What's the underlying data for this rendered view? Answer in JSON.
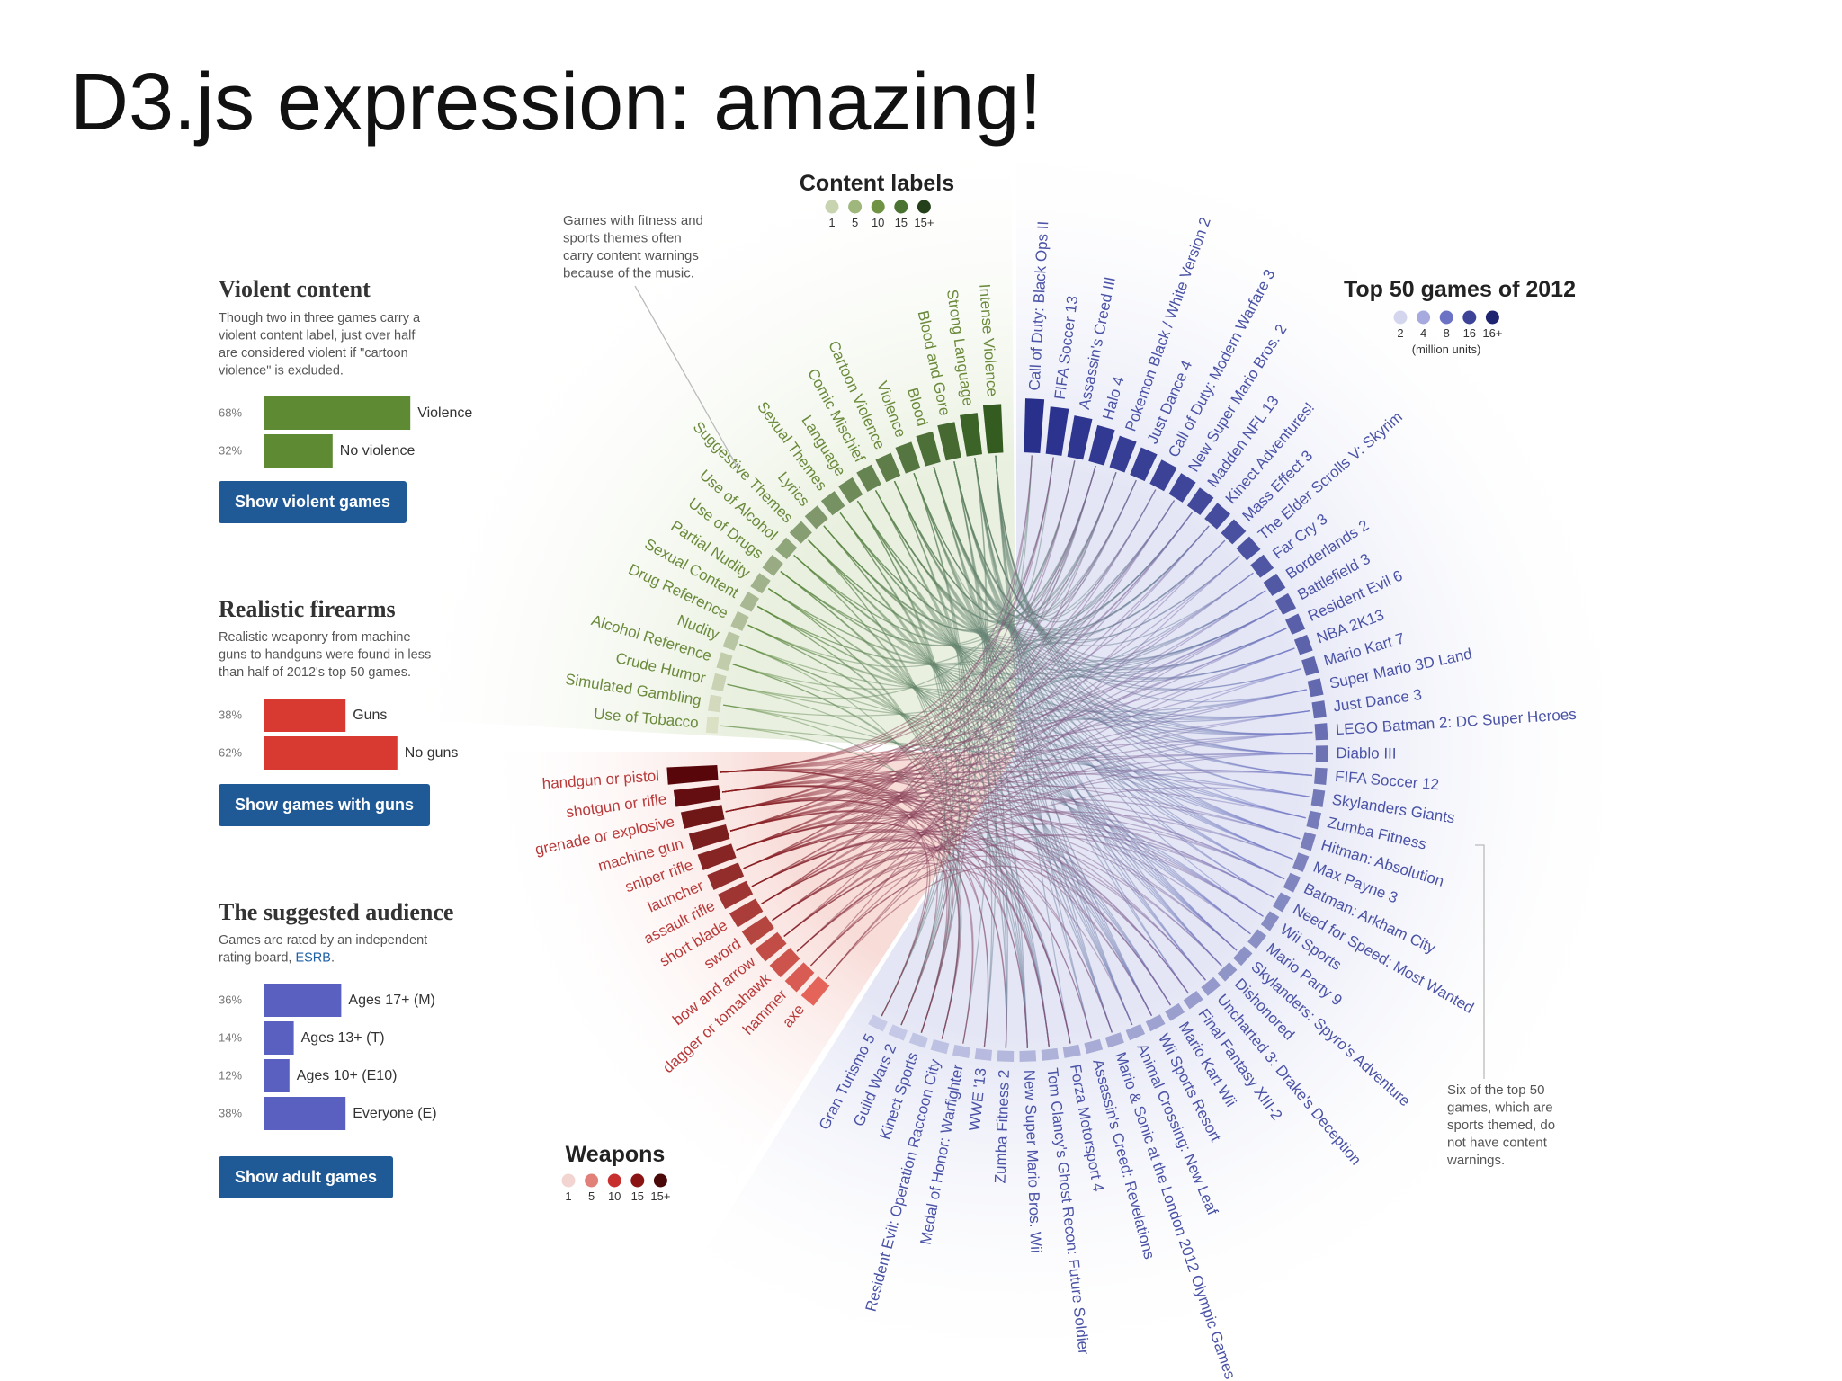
{
  "title": "D3.js expression: amazing!",
  "panels": [
    {
      "heading": "Violent content",
      "description": [
        "Though two in three games carry a",
        "violent content label, just over half",
        "are considered violent if \"cartoon",
        "violence\" is excluded."
      ],
      "bars": [
        {
          "percent": {
            "value": 68,
            "label": "68%"
          },
          "label": "Violence"
        },
        {
          "percent": {
            "value": 32,
            "label": "32%"
          },
          "label": "No violence"
        }
      ],
      "color": "#5f8a34",
      "button": "Show violent games"
    },
    {
      "heading": "Realistic firearms",
      "description": [
        "Realistic weaponry from machine",
        "guns to handguns were found in less",
        "than half of 2012's top 50 games."
      ],
      "bars": [
        {
          "percent": {
            "value": 38,
            "label": "38%"
          },
          "label": "Guns"
        },
        {
          "percent": {
            "value": 62,
            "label": "62%"
          },
          "label": "No guns"
        }
      ],
      "color": "#d83a32",
      "button": "Show games with guns"
    },
    {
      "heading": "The suggested audience",
      "description": [
        "Games are rated by an independent"
      ],
      "description_end": {
        "text": "rating board, ",
        "link": "ESRB",
        "suffix": "."
      },
      "bars": [
        {
          "percent": {
            "value": 36,
            "label": "36%"
          },
          "label": "Ages 17+ (M)"
        },
        {
          "percent": {
            "value": 14,
            "label": "14%"
          },
          "label": "Ages 13+ (T)"
        },
        {
          "percent": {
            "value": 12,
            "label": "12%"
          },
          "label": "Ages 10+ (E10)"
        },
        {
          "percent": {
            "value": 38,
            "label": "38%"
          },
          "label": "Everyone (E)"
        }
      ],
      "color": "#5a60c0",
      "button": "Show adult games"
    }
  ],
  "legends": [
    {
      "title": "Content labels",
      "ticks": [
        "1",
        "5",
        "10",
        "15",
        "15+"
      ]
    },
    {
      "title": "Top 50 games of 2012",
      "ticks": [
        "2",
        "4",
        "8",
        "16",
        "16+"
      ],
      "note": "(million units)"
    },
    {
      "title": "Weapons",
      "ticks": [
        "1",
        "5",
        "10",
        "15",
        "15+"
      ]
    }
  ],
  "annotations": [
    {
      "lines": [
        "Games with fitness and",
        "sports themes often",
        "carry content warnings",
        "because of the music."
      ]
    },
    {
      "lines": [
        "Six of the top 50",
        "games, which are",
        "sports themed, do",
        "not have content",
        "warnings."
      ]
    }
  ],
  "wheel": {
    "games": [
      "Call of Duty: Black Ops II",
      "FIFA Soccer 13",
      "Assassin's Creed III",
      "Halo 4",
      "Pokemon Black / White Version 2",
      "Just Dance 4",
      "Call of Duty: Modern Warfare 3",
      "New Super Mario Bros. 2",
      "Madden NFL 13",
      "Kinect Adventures!",
      "Mass Effect 3",
      "The Elder Scrolls V: Skyrim",
      "Far Cry 3",
      "Borderlands 2",
      "Battlefield 3",
      "Resident Evil 6",
      "NBA 2K13",
      "Mario Kart 7",
      "Super Mario 3D Land",
      "Just Dance 3",
      "LEGO Batman 2: DC Super Heroes",
      "Diablo III",
      "FIFA Soccer 12",
      "Skylanders Giants",
      "Zumba Fitness",
      "Hitman: Absolution",
      "Max Payne 3",
      "Batman: Arkham City",
      "Need for Speed: Most Wanted",
      "Wii Sports",
      "Mario Party 9",
      "Skylanders: Spyro's Adventure",
      "Dishonored",
      "Uncharted 3: Drake's Deception",
      "Final Fantasy XIII-2",
      "Mario Kart Wii",
      "Wii Sports Resort",
      "Animal Crossing: New Leaf",
      "Mario & Sonic at the London 2012 Olympic Games",
      "Assassin's Creed: Revelations",
      "Forza Motorsport 4",
      "Tom Clancy's Ghost Recon: Future Soldier",
      "New Super Mario Bros. Wii",
      "Zumba Fitness 2",
      "WWE '13",
      "Medal of Honor: Warfighter",
      "Resident Evil: Operation Raccoon City",
      "Kinect Sports",
      "Guild Wars 2",
      "Gran Turismo 5"
    ],
    "content_labels": [
      "Intense Violence",
      "Strong Language",
      "Blood and Gore",
      "Blood",
      "Violence",
      "Cartoon Violence",
      "Comic Mischief",
      "Language",
      "Sexual Themes",
      "Lyrics",
      "Suggestive Themes",
      "Use of Alcohol",
      "Use of Drugs",
      "Partial Nudity",
      "Sexual Content",
      "Drug Reference",
      "Nudity",
      "Alcohol Reference",
      "Crude Humor",
      "Simulated Gambling",
      "Use of Tobacco"
    ],
    "weapons": [
      "handgun or pistol",
      "shotgun or rifle",
      "grenade or explosive",
      "machine gun",
      "sniper rifle",
      "launcher",
      "assault rifle",
      "short blade",
      "sword",
      "bow and arrow",
      "dagger or tomahawk",
      "hammer",
      "axe"
    ]
  }
}
